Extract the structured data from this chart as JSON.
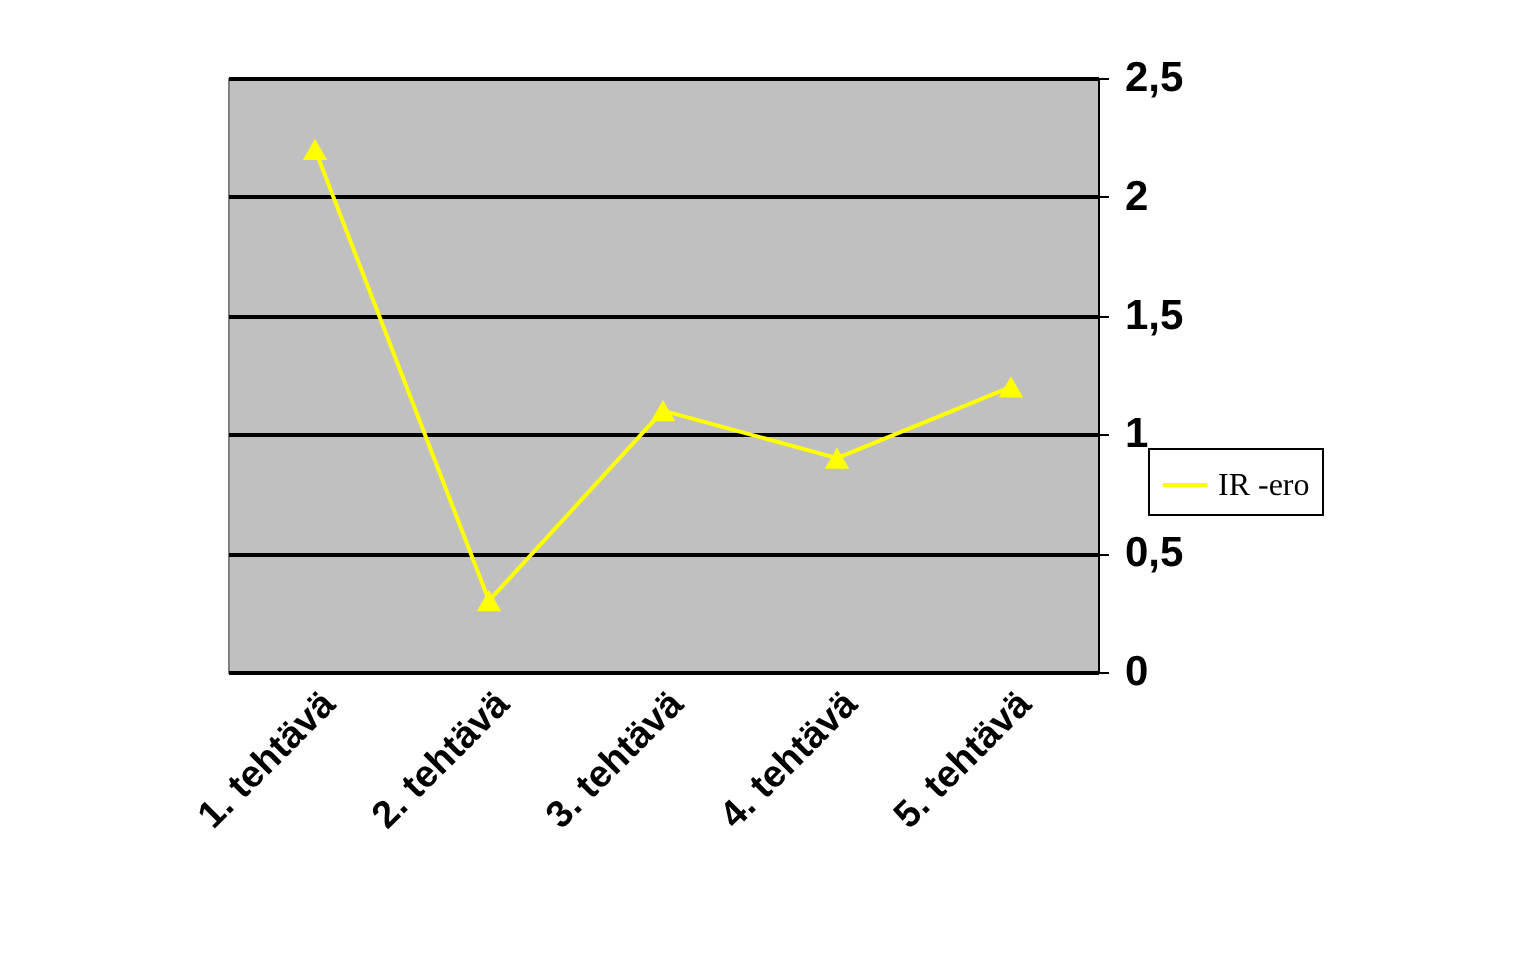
{
  "chart_data": {
    "type": "line",
    "categories": [
      "1. tehtävä",
      "2. tehtävä",
      "3. tehtävä",
      "4. tehtävä",
      "5. tehtävä"
    ],
    "series": [
      {
        "name": "IR -ero",
        "color": "#ffff00",
        "values": [
          2.2,
          0.3,
          1.1,
          0.9,
          1.2
        ]
      }
    ],
    "ylim": [
      0,
      2.5
    ],
    "yticks": [
      0,
      {
        "value": 0.5,
        "label": "0,5"
      },
      1,
      {
        "value": 1.5,
        "label": "1,5"
      },
      2,
      {
        "value": 2.5,
        "label": "2,5"
      }
    ],
    "grid": "y",
    "legend": "right",
    "marker": "triangle",
    "line_style": "solid"
  }
}
